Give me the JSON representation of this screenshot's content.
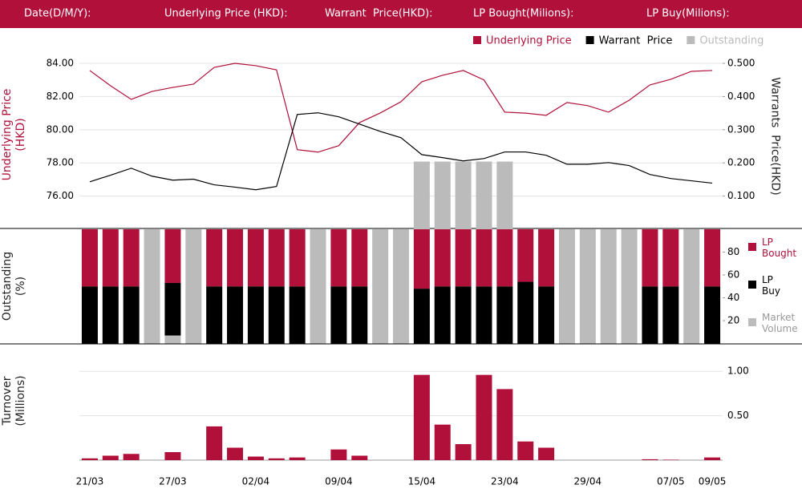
{
  "header": {
    "labels": [
      "Date(D/M/Y):",
      "Underlying Price (HKD):",
      "Warrant  Price(HKD):",
      "LP Bought(Milions):",
      "LP Buy(Milions):"
    ]
  },
  "chart_data": [
    {
      "type": "line",
      "ylabel": "Underlying Price (HKD)",
      "y2label": "Warrants  Price(HKD)",
      "ylim": [
        74,
        85.5
      ],
      "yticks": [
        {
          "value": 76,
          "label": "76.00"
        },
        {
          "value": 78,
          "label": "78.00"
        },
        {
          "value": 80,
          "label": "80.00"
        },
        {
          "value": 82,
          "label": "82.00"
        },
        {
          "value": 84,
          "label": "84.00"
        }
      ],
      "y2lim": [
        0,
        0.575
      ],
      "y2ticks": [
        {
          "value": 0.1,
          "label": "0.100"
        },
        {
          "value": 0.2,
          "label": "0.200"
        },
        {
          "value": 0.3,
          "label": "0.300"
        },
        {
          "value": 0.4,
          "label": "0.400"
        },
        {
          "value": 0.5,
          "label": "0.500"
        }
      ],
      "grid": true,
      "series": [
        {
          "name": "Underlying Price",
          "color": "#b0103a",
          "values": [
            83.57,
            82.65,
            81.83,
            82.31,
            82.55,
            82.75,
            83.76,
            84.0,
            83.86,
            83.61,
            78.8,
            78.65,
            79.04,
            80.43,
            81.01,
            81.69,
            82.89,
            83.28,
            83.57,
            83.0,
            81.06,
            81.0,
            80.87,
            81.64,
            81.45,
            81.06,
            81.78,
            82.7,
            83.04,
            83.52,
            83.57
          ]
        },
        {
          "name": "Warrant  Price",
          "color": "#000000",
          "axis": "y2",
          "values": [
            0.143,
            0.163,
            0.184,
            0.16,
            0.148,
            0.151,
            0.134,
            0.127,
            0.119,
            0.129,
            0.346,
            0.351,
            0.339,
            0.317,
            0.295,
            0.276,
            0.225,
            0.216,
            0.206,
            0.213,
            0.233,
            0.233,
            0.223,
            0.196,
            0.196,
            0.201,
            0.192,
            0.165,
            0.153,
            0.146,
            0.139
          ]
        },
        {
          "name": "Outstanding",
          "color": "#bbbbbb",
          "axis": "y2",
          "type": "bar",
          "values": [
            null,
            null,
            null,
            null,
            null,
            null,
            null,
            null,
            null,
            null,
            null,
            null,
            null,
            null,
            null,
            null,
            0.204,
            0.204,
            0.204,
            0.204,
            0.204,
            null,
            null,
            null,
            null,
            null,
            null,
            null,
            null,
            null,
            null
          ]
        }
      ]
    },
    {
      "type": "bar",
      "stacked": true,
      "ylabel": "Outstanding (%)",
      "ylim": [
        0,
        100
      ],
      "yticks": [
        20,
        40,
        60,
        80
      ],
      "series": [
        {
          "name": "LP Bought",
          "color": "#b0103a",
          "values": [
            50,
            50,
            50,
            null,
            47,
            null,
            50,
            50,
            50,
            50,
            50,
            null,
            50,
            50,
            null,
            null,
            52,
            50,
            50,
            50,
            50,
            46,
            50,
            null,
            null,
            null,
            null,
            50,
            50,
            null,
            50
          ]
        },
        {
          "name": "LP Buy",
          "color": "#000000",
          "values": [
            50,
            50,
            50,
            null,
            46,
            null,
            50,
            50,
            50,
            50,
            50,
            null,
            50,
            50,
            null,
            null,
            48,
            50,
            50,
            50,
            50,
            54,
            50,
            null,
            null,
            null,
            null,
            50,
            50,
            null,
            50
          ]
        },
        {
          "name": "Market Volume",
          "color": "#bbbbbb",
          "values": [
            null,
            null,
            null,
            100,
            7,
            100,
            null,
            null,
            null,
            null,
            null,
            100,
            null,
            null,
            100,
            100,
            null,
            null,
            null,
            null,
            null,
            null,
            null,
            100,
            100,
            100,
            100,
            null,
            null,
            100,
            null
          ]
        }
      ]
    },
    {
      "type": "bar",
      "ylabel": "Turnover (Millions)",
      "color": "#b0103a",
      "categories": [
        "21/03",
        null,
        null,
        null,
        "27/03",
        null,
        null,
        null,
        "02/04",
        null,
        null,
        null,
        "09/04",
        null,
        null,
        null,
        "15/04",
        null,
        null,
        null,
        "23/04",
        null,
        null,
        null,
        "29/04",
        null,
        null,
        null,
        "07/05",
        null,
        "09/05"
      ],
      "values": [
        0.02,
        0.05,
        0.07,
        0,
        0.09,
        0,
        0.38,
        0.14,
        0.04,
        0.02,
        0.03,
        0,
        0.12,
        0.05,
        0,
        0,
        0.96,
        0.4,
        0.18,
        0.96,
        0.8,
        0.21,
        0.14,
        0,
        0,
        0,
        0,
        0.01,
        0.005,
        0,
        0.03
      ],
      "ylim": [
        0,
        1.3
      ],
      "yticks": [
        {
          "value": 0.5,
          "label": "0.50"
        },
        {
          "value": 1,
          "label": "1.00"
        }
      ],
      "grid": true
    }
  ]
}
